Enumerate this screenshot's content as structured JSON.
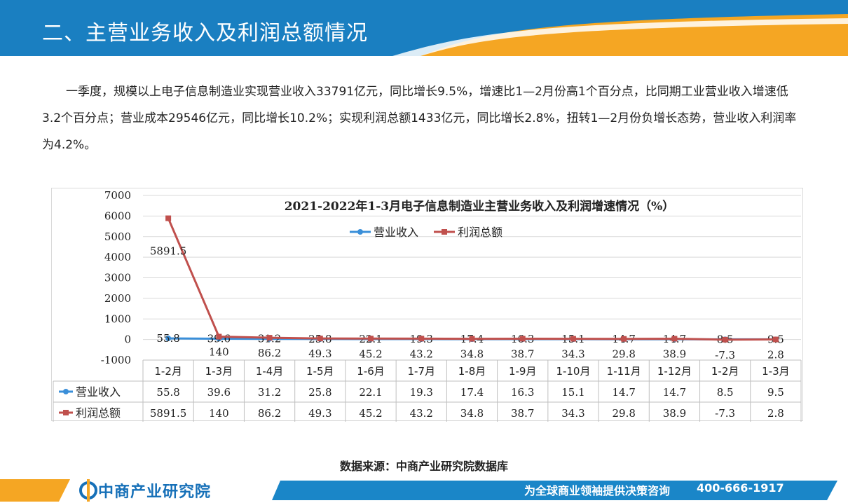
{
  "header": {
    "title": "二、主营业务收入及利润总额情况"
  },
  "paragraph": "一季度，规模以上电子信息制造业实现营业收入33791亿元，同比增长9.5%，增速比1—2月份高1个百分点，比同期工业营业收入增速低3.2个百分点；营业成本29546亿元，同比增长10.2%；实现利润总额1433亿元，同比增长2.8%，扭转1—2月份负增长态势，营业收入利润率为4.2%。",
  "source": "数据来源：中商产业研究院数据库",
  "footer": {
    "brand": "中商产业研究院",
    "slogan": "为全球商业领袖提供决策咨询",
    "phone": "400-666-1917"
  },
  "colors": {
    "header_blue": "#1a7fc1",
    "accent_orange": "#f5a623",
    "series_revenue": "#3a8fd9",
    "series_profit": "#c0504d"
  },
  "chart_data": {
    "type": "line",
    "title": "2021-2022年1-3月电子信息制造业主营业务收入及利润增速情况（%）",
    "categories": [
      "1-2月",
      "1-3月",
      "1-4月",
      "1-5月",
      "1-6月",
      "1-7月",
      "1-8月",
      "1-9月",
      "1-10月",
      "1-11月",
      "1-12月",
      "1-2月",
      "1-3月"
    ],
    "series": [
      {
        "name": "营业收入",
        "values": [
          55.8,
          39.6,
          31.2,
          25.8,
          22.1,
          19.3,
          17.4,
          16.3,
          15.1,
          14.7,
          14.7,
          8.5,
          9.5
        ],
        "color": "#3a8fd9"
      },
      {
        "name": "利润总额",
        "values": [
          5891.5,
          140,
          86.2,
          49.3,
          45.2,
          43.2,
          34.8,
          38.7,
          34.3,
          29.8,
          38.9,
          -7.3,
          2.8
        ],
        "color": "#c0504d"
      }
    ],
    "yticks": [
      -1000,
      0,
      1000,
      2000,
      3000,
      4000,
      5000,
      6000,
      7000
    ],
    "ylim": [
      -1000,
      7000
    ],
    "legend_position": "top-center",
    "grid": true,
    "data_table": true
  }
}
